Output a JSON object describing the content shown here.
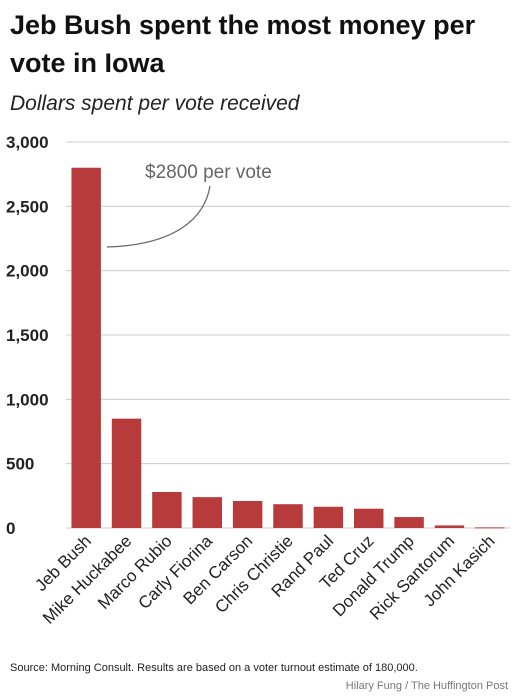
{
  "title": "Jeb Bush spent the most money per vote in Iowa",
  "subtitle": "Dollars spent per vote received",
  "source": "Source: Morning Consult. Results are based on a voter turnout estimate of 180,000.",
  "credit": "Hilary Fung / The Huffington Post",
  "colors": {
    "bar": "#b83b3b",
    "grid": "#cccccc",
    "annotation": "#666666"
  },
  "chart_data": {
    "type": "bar",
    "categories": [
      "Jeb Bush",
      "Mike Huckabee",
      "Marco Rubio",
      "Carly Fiorina",
      "Ben Carson",
      "Chris Christie",
      "Rand Paul",
      "Ted Cruz",
      "Donald Trump",
      "Rick Santorum",
      "John Kasich"
    ],
    "values": [
      2800,
      850,
      280,
      240,
      210,
      185,
      165,
      150,
      85,
      20,
      5
    ],
    "ylim": [
      0,
      3000
    ],
    "yticks": [
      0,
      500,
      1000,
      1500,
      2000,
      2500,
      3000
    ],
    "ytick_labels": [
      "0",
      "500",
      "1,000",
      "1,500",
      "2,000",
      "2,500",
      "3,000"
    ],
    "grid": true,
    "annotation": {
      "text": "$2800 per vote",
      "category": "Jeb Bush"
    }
  }
}
